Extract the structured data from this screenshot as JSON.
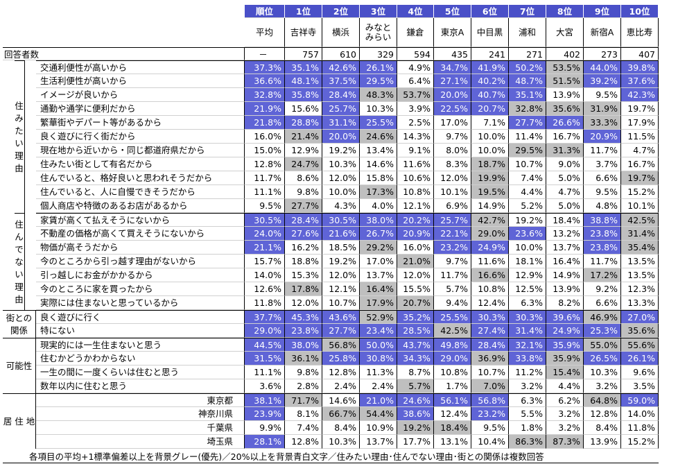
{
  "header": {
    "rank_label": "順位",
    "ranks": [
      "1位",
      "2位",
      "3位",
      "4位",
      "5位",
      "6位",
      "7位",
      "8位",
      "9位",
      "10位"
    ],
    "average_label": "平均",
    "cities": [
      "吉祥寺",
      "横浜",
      "みなと みらい",
      "鎌倉",
      "東京A",
      "中目黒",
      "浦和",
      "大宮",
      "新宿A",
      "恵比寿"
    ]
  },
  "respondents": {
    "label": "回答者数",
    "avg": "－",
    "values": [
      "757",
      "610",
      "329",
      "594",
      "435",
      "241",
      "271",
      "402",
      "273",
      "407"
    ]
  },
  "sections": [
    {
      "title": "住 み た い 理 由",
      "rows": [
        {
          "label": "交通利便性が高いから",
          "avg": "37.3%",
          "values": [
            "35.1%",
            "42.6%",
            "26.1%",
            "4.9%",
            "34.7%",
            "41.9%",
            "50.2%",
            "53.5%",
            "44.0%",
            "39.8%"
          ],
          "blue": [
            0,
            1,
            2,
            3,
            5,
            6,
            7,
            9,
            10
          ],
          "grey": [
            8
          ]
        },
        {
          "label": "生活利便性が高いから",
          "avg": "36.6%",
          "values": [
            "48.1%",
            "37.5%",
            "29.5%",
            "6.4%",
            "27.1%",
            "40.2%",
            "48.7%",
            "51.5%",
            "39.2%",
            "37.6%"
          ],
          "blue": [
            0,
            1,
            2,
            3,
            5,
            6,
            7,
            9,
            10
          ],
          "grey": [
            8
          ]
        },
        {
          "label": "イメージが良いから",
          "avg": "32.8%",
          "values": [
            "35.8%",
            "28.4%",
            "48.3%",
            "53.7%",
            "20.0%",
            "40.7%",
            "35.1%",
            "13.9%",
            "9.5%",
            "42.3%"
          ],
          "blue": [
            0,
            1,
            2,
            5,
            6,
            7,
            10
          ],
          "grey": [
            3,
            4
          ]
        },
        {
          "label": "通勤や通学に便利だから",
          "avg": "21.9%",
          "values": [
            "15.6%",
            "25.7%",
            "10.3%",
            "3.9%",
            "22.5%",
            "20.7%",
            "32.8%",
            "35.6%",
            "31.9%",
            "19.7%"
          ],
          "blue": [
            0,
            2,
            5,
            6
          ],
          "grey": [
            7,
            8,
            9
          ]
        },
        {
          "label": "繁華街やデパート等があるから",
          "avg": "21.8%",
          "values": [
            "28.8%",
            "31.1%",
            "25.5%",
            "2.5%",
            "17.0%",
            "7.1%",
            "27.7%",
            "26.6%",
            "33.3%",
            "17.9%"
          ],
          "blue": [
            0,
            1,
            2,
            3,
            7,
            8
          ],
          "grey": [
            9
          ]
        },
        {
          "label": "良く遊びに行く街だから",
          "avg": "16.0%",
          "values": [
            "21.4%",
            "20.0%",
            "24.6%",
            "14.3%",
            "9.7%",
            "10.0%",
            "11.4%",
            "16.7%",
            "20.9%",
            "11.5%"
          ],
          "blue": [
            2,
            9
          ],
          "grey": [
            1,
            3
          ]
        },
        {
          "label": "現在地から近いから・同じ都道府県だから",
          "avg": "15.0%",
          "values": [
            "12.9%",
            "19.2%",
            "13.4%",
            "9.1%",
            "8.0%",
            "10.0%",
            "29.5%",
            "31.3%",
            "11.7%",
            "4.7%"
          ],
          "blue": [],
          "grey": [
            7,
            8
          ]
        },
        {
          "label": "住みたい街として有名だから",
          "avg": "12.8%",
          "values": [
            "24.7%",
            "10.3%",
            "14.6%",
            "11.6%",
            "8.3%",
            "18.7%",
            "10.7%",
            "9.0%",
            "3.7%",
            "16.7%"
          ],
          "blue": [],
          "grey": [
            1,
            6
          ]
        },
        {
          "label": "住んでいると、格好良いと思われそうだから",
          "avg": "11.7%",
          "values": [
            "8.6%",
            "12.0%",
            "15.8%",
            "10.6%",
            "12.0%",
            "19.9%",
            "7.4%",
            "5.0%",
            "6.6%",
            "19.7%"
          ],
          "blue": [],
          "grey": [
            6,
            10
          ]
        },
        {
          "label": "住んでいると、人に自慢できそうだから",
          "avg": "11.1%",
          "values": [
            "9.8%",
            "10.0%",
            "17.3%",
            "10.8%",
            "10.1%",
            "19.5%",
            "4.4%",
            "4.7%",
            "9.5%",
            "15.2%"
          ],
          "blue": [],
          "grey": [
            3,
            6
          ]
        },
        {
          "label": "個人商店や特徴のあるお店があるから",
          "avg": "9.5%",
          "values": [
            "27.7%",
            "4.3%",
            "4.0%",
            "12.1%",
            "6.9%",
            "14.9%",
            "5.2%",
            "5.0%",
            "4.8%",
            "10.1%"
          ],
          "blue": [],
          "grey": [
            1
          ]
        }
      ]
    },
    {
      "title": "住 ん で な い 理 由",
      "rows": [
        {
          "label": "家賃が高くて払えそうにないから",
          "avg": "30.5%",
          "values": [
            "28.4%",
            "30.5%",
            "38.0%",
            "20.2%",
            "25.7%",
            "42.7%",
            "19.2%",
            "18.4%",
            "38.8%",
            "42.5%"
          ],
          "blue": [
            0,
            1,
            2,
            3,
            4,
            5,
            9
          ],
          "grey": [
            6,
            10
          ]
        },
        {
          "label": "不動産の価格が高くて買えそうにないから",
          "avg": "24.0%",
          "values": [
            "27.6%",
            "21.6%",
            "26.7%",
            "20.9%",
            "22.1%",
            "29.0%",
            "23.6%",
            "13.2%",
            "23.8%",
            "31.4%"
          ],
          "blue": [
            0,
            1,
            2,
            3,
            4,
            5,
            7,
            9
          ],
          "grey": [
            6,
            10
          ]
        },
        {
          "label": "物価が高そうだから",
          "avg": "21.1%",
          "values": [
            "16.2%",
            "18.5%",
            "29.2%",
            "16.0%",
            "23.2%",
            "24.9%",
            "10.0%",
            "13.7%",
            "23.8%",
            "35.4%"
          ],
          "blue": [
            0,
            5,
            6,
            9
          ],
          "grey": [
            3,
            10
          ]
        },
        {
          "label": "今のところから引っ越す理由がないから",
          "avg": "15.7%",
          "values": [
            "18.8%",
            "19.2%",
            "17.0%",
            "21.0%",
            "9.7%",
            "11.6%",
            "18.1%",
            "16.4%",
            "11.7%",
            "13.5%"
          ],
          "blue": [],
          "grey": [
            4
          ]
        },
        {
          "label": "引っ越しにお金がかかるから",
          "avg": "14.0%",
          "values": [
            "15.3%",
            "12.0%",
            "13.7%",
            "12.0%",
            "11.7%",
            "16.6%",
            "12.9%",
            "14.9%",
            "17.2%",
            "13.5%"
          ],
          "blue": [],
          "grey": [
            6,
            9
          ]
        },
        {
          "label": "今のところに家を買ったから",
          "avg": "12.6%",
          "values": [
            "17.8%",
            "12.1%",
            "16.4%",
            "15.5%",
            "5.7%",
            "10.8%",
            "12.5%",
            "13.9%",
            "9.2%",
            "12.3%"
          ],
          "blue": [],
          "grey": [
            1,
            3
          ]
        },
        {
          "label": "実際には住まないと思っているから",
          "avg": "11.8%",
          "values": [
            "12.0%",
            "10.7%",
            "17.9%",
            "20.7%",
            "9.4%",
            "12.4%",
            "6.3%",
            "8.2%",
            "6.6%",
            "13.3%"
          ],
          "blue": [],
          "grey": [
            3,
            4
          ]
        }
      ]
    },
    {
      "title": "街との 関係",
      "rows": [
        {
          "label": "良く遊びに行く",
          "avg": "37.7%",
          "values": [
            "45.3%",
            "43.6%",
            "52.9%",
            "35.2%",
            "25.5%",
            "30.3%",
            "30.3%",
            "39.6%",
            "46.9%",
            "27.0%"
          ],
          "blue": [
            0,
            1,
            2,
            4,
            5,
            6,
            7,
            8,
            10
          ],
          "grey": [
            3,
            9
          ]
        },
        {
          "label": "特にない",
          "avg": "29.0%",
          "values": [
            "23.8%",
            "27.7%",
            "23.4%",
            "28.5%",
            "42.5%",
            "27.4%",
            "31.4%",
            "24.9%",
            "25.3%",
            "35.6%"
          ],
          "blue": [
            0,
            1,
            2,
            3,
            4,
            6,
            7,
            8,
            9
          ],
          "grey": [
            5,
            10
          ]
        }
      ]
    },
    {
      "title": "可能性",
      "rows": [
        {
          "label": "現実的には一生住まないと思う",
          "avg": "44.5%",
          "values": [
            "38.0%",
            "56.8%",
            "50.0%",
            "43.7%",
            "49.8%",
            "28.4%",
            "32.1%",
            "35.9%",
            "55.0%",
            "55.6%"
          ],
          "blue": [
            0,
            1,
            3,
            4,
            5,
            6,
            7,
            8
          ],
          "grey": [
            2,
            9,
            10
          ]
        },
        {
          "label": "住むかどうかわからない",
          "avg": "31.5%",
          "values": [
            "36.1%",
            "25.8%",
            "30.8%",
            "34.3%",
            "29.0%",
            "36.9%",
            "33.8%",
            "35.9%",
            "26.5%",
            "26.1%"
          ],
          "blue": [
            0,
            2,
            3,
            4,
            5,
            7,
            9,
            10
          ],
          "grey": [
            1,
            6,
            8
          ]
        },
        {
          "label": "一生の間に一度くらいは住むと思う",
          "avg": "11.1%",
          "values": [
            "9.8%",
            "12.8%",
            "11.3%",
            "8.7%",
            "10.8%",
            "10.7%",
            "11.2%",
            "15.4%",
            "10.3%",
            "9.6%"
          ],
          "blue": [],
          "grey": [
            8
          ]
        },
        {
          "label": "数年以内に住むと思う",
          "avg": "3.6%",
          "values": [
            "2.8%",
            "2.4%",
            "2.4%",
            "5.7%",
            "1.7%",
            "7.0%",
            "3.2%",
            "4.4%",
            "3.2%",
            "3.5%"
          ],
          "blue": [],
          "grey": [
            4,
            6
          ]
        }
      ]
    },
    {
      "title": "居 住 地",
      "centered": true,
      "rows": [
        {
          "label": "東京都",
          "avg": "38.1%",
          "values": [
            "71.7%",
            "14.6%",
            "21.0%",
            "24.6%",
            "56.1%",
            "56.8%",
            "6.3%",
            "6.2%",
            "64.8%",
            "59.0%"
          ],
          "blue": [
            0,
            3,
            4,
            5,
            6,
            10
          ],
          "grey": [
            1,
            9
          ]
        },
        {
          "label": "神奈川県",
          "avg": "23.9%",
          "values": [
            "8.1%",
            "66.7%",
            "54.4%",
            "38.6%",
            "12.4%",
            "23.2%",
            "5.5%",
            "3.2%",
            "12.8%",
            "14.0%"
          ],
          "blue": [
            0,
            4,
            6
          ],
          "grey": [
            2,
            3
          ]
        },
        {
          "label": "千葉県",
          "avg": "9.9%",
          "values": [
            "7.4%",
            "8.4%",
            "10.9%",
            "19.2%",
            "18.4%",
            "9.5%",
            "1.8%",
            "3.2%",
            "8.4%",
            "11.8%"
          ],
          "blue": [],
          "grey": [
            4,
            5
          ]
        },
        {
          "label": "埼玉県",
          "avg": "28.1%",
          "values": [
            "12.8%",
            "10.3%",
            "13.7%",
            "17.7%",
            "13.1%",
            "10.4%",
            "86.3%",
            "87.3%",
            "13.9%",
            "15.2%"
          ],
          "blue": [
            0
          ],
          "grey": [
            7,
            8
          ]
        }
      ]
    }
  ],
  "footnote": "各項目の平均+1標準偏差以上を背景グレー(優先)／20%以上を背景青白文字／住みたい理由･住んでない理由･街との関係は複数回答"
}
